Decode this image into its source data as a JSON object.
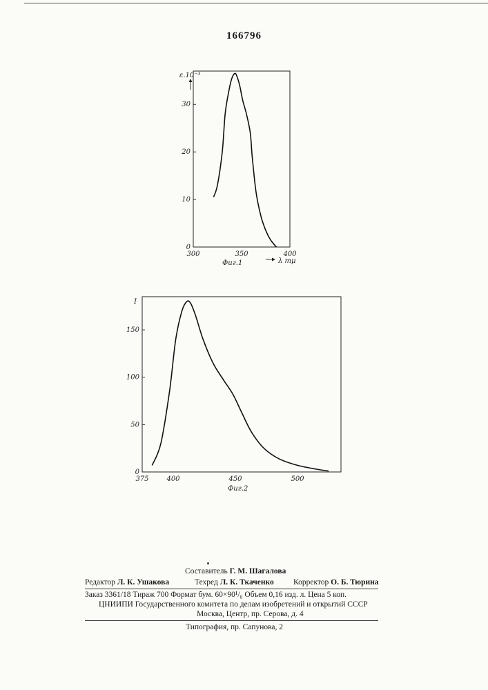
{
  "header": {
    "patent_number": "166796"
  },
  "chart_data": [
    {
      "type": "line",
      "caption": "Фиг.1",
      "ylabel": "ε.10⁻³",
      "xlabel_unit": "λ mμ",
      "xlim": [
        300,
        400
      ],
      "ylim": [
        0,
        37
      ],
      "xticks": [
        "300",
        "350",
        "400"
      ],
      "yticks": [
        "0",
        "10",
        "20",
        "30"
      ],
      "x": [
        321,
        325,
        330,
        333,
        337,
        340,
        343,
        345,
        348,
        351,
        355,
        359,
        361,
        365,
        370,
        375,
        380,
        386
      ],
      "y": [
        10.5,
        13.0,
        20.0,
        28.0,
        33.0,
        35.5,
        36.5,
        36.0,
        34.0,
        31.0,
        28.0,
        24.0,
        19.0,
        11.5,
        6.5,
        3.5,
        1.5,
        0.0
      ]
    },
    {
      "type": "line",
      "caption": "Фиг.2",
      "ylabel": "I",
      "xlim": [
        375,
        535
      ],
      "ylim": [
        0,
        185
      ],
      "xticks": [
        "375",
        "400",
        "450",
        "500"
      ],
      "yticks": [
        "0",
        "50",
        "100",
        "150"
      ],
      "x": [
        383,
        390,
        397,
        402,
        407,
        411,
        414,
        418,
        424,
        432,
        440,
        448,
        455,
        463,
        473,
        485,
        500,
        515,
        525
      ],
      "y": [
        7,
        30,
        85,
        140,
        170,
        180,
        178,
        165,
        140,
        115,
        98,
        82,
        63,
        42,
        25,
        14,
        7,
        3,
        1
      ]
    }
  ],
  "footer": {
    "compiler_label": "Составитель",
    "compiler_name": "Г. М. Шагалова",
    "editor_label": "Редактор",
    "editor_name": "Л. К. Ушакова",
    "techred_label": "Техред",
    "techred_name": "Л. К. Ткаченко",
    "corrector_label": "Корректор",
    "corrector_name": "О. Б. Тюрина",
    "order_line": "Заказ 3361/18    Тираж 700  Формат бум. 60×90¹/₈    Объем 0,16 изд. л. Цена 5 коп.",
    "org_line": "ЦНИИПИ Государственного комитета по делам изобретений и открытий СССР",
    "address_line": "Москва, Центр, пр. Серова, д. 4",
    "printer_line": "Типография, пр. Сапунова, 2"
  }
}
